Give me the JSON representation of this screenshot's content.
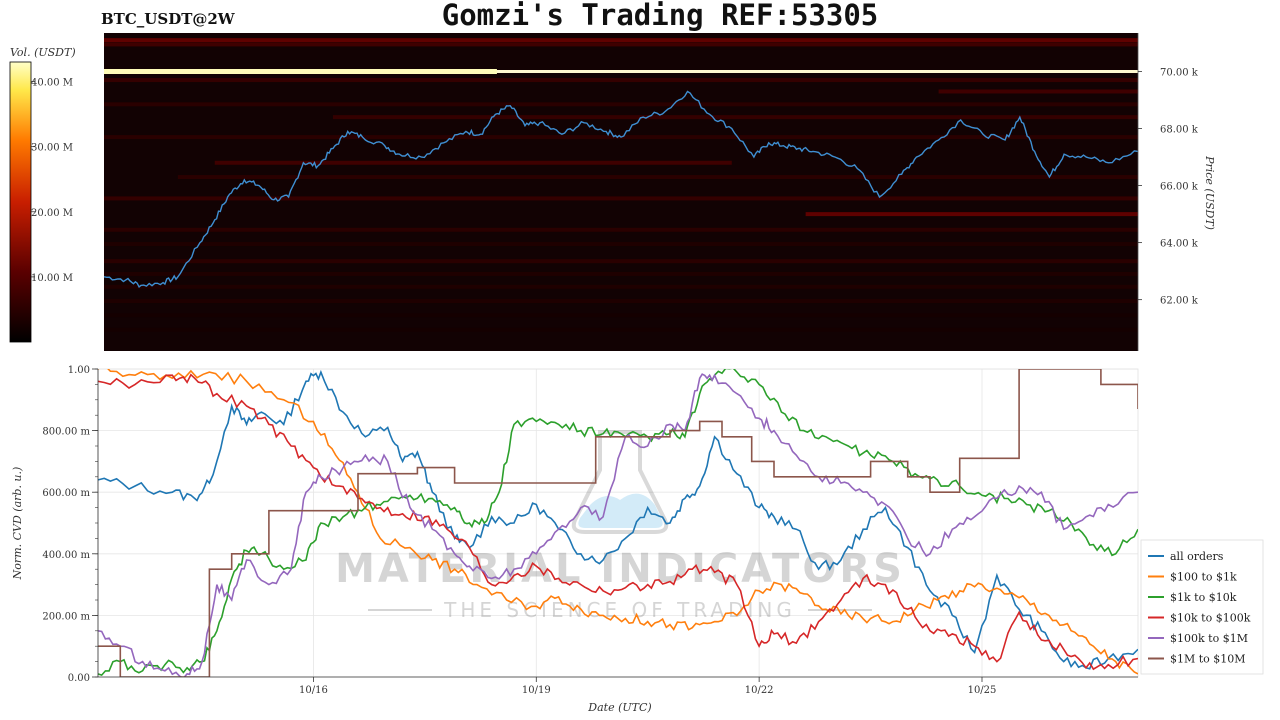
{
  "header": {
    "pair_label": "BTC_USDT@2W",
    "title": "Gomzi's Trading REF:53305"
  },
  "watermark": {
    "line1": "MATERIAL INDICATORS",
    "line2": "THE SCIENCE OF TRADING"
  },
  "colors": {
    "price_line": "#3f8fd2",
    "heatmap_bg": "#120203",
    "hot_band": "#fff8d0",
    "grid": "#e6e6e6"
  },
  "chart_data": [
    {
      "type": "heatmap",
      "title": "",
      "colorbar": {
        "label": "Vol. (USDT)",
        "ticks": [
          "40.00 M",
          "30.00 M",
          "20.00 M",
          "10.00 M"
        ],
        "tick_values": [
          40,
          30,
          20,
          10
        ],
        "range": [
          0,
          43
        ],
        "colormap": [
          "#000000",
          "#5a0000",
          "#c81e00",
          "#ff7a00",
          "#ffe84a",
          "#ffffc8"
        ]
      },
      "ylabel": "Price (USDT)",
      "y_ticks": [
        "70.00 k",
        "68.00 k",
        "66.00 k",
        "64.00 k",
        "62.00 k"
      ],
      "y_tick_values": [
        70000,
        68000,
        66000,
        64000,
        62000
      ],
      "ylim": [
        60200,
        71350
      ],
      "x_range_days": [
        0,
        14
      ],
      "liquidity_bands": [
        {
          "price": 70000,
          "volume": 42,
          "from_day": 0,
          "to_day": 14
        },
        {
          "price": 71100,
          "volume": 9,
          "from_day": 0,
          "to_day": 14
        },
        {
          "price": 70950,
          "volume": 6,
          "from_day": 0,
          "to_day": 14
        },
        {
          "price": 69700,
          "volume": 5,
          "from_day": 0,
          "to_day": 14
        },
        {
          "price": 69300,
          "volume": 6,
          "from_day": 11.3,
          "to_day": 14
        },
        {
          "price": 68850,
          "volume": 4,
          "from_day": 0,
          "to_day": 14
        },
        {
          "price": 68400,
          "volume": 5,
          "from_day": 3.1,
          "to_day": 14
        },
        {
          "price": 67700,
          "volume": 4,
          "from_day": 0,
          "to_day": 14
        },
        {
          "price": 66800,
          "volume": 6,
          "from_day": 1.5,
          "to_day": 8.5
        },
        {
          "price": 66300,
          "volume": 4,
          "from_day": 1.0,
          "to_day": 14
        },
        {
          "price": 65550,
          "volume": 5,
          "from_day": 0,
          "to_day": 14
        },
        {
          "price": 65000,
          "volume": 9,
          "from_day": 9.5,
          "to_day": 14
        },
        {
          "price": 64450,
          "volume": 4,
          "from_day": 0,
          "to_day": 14
        },
        {
          "price": 63950,
          "volume": 3,
          "from_day": 0,
          "to_day": 14
        },
        {
          "price": 63350,
          "volume": 4,
          "from_day": 0,
          "to_day": 14
        },
        {
          "price": 62900,
          "volume": 3,
          "from_day": 0,
          "to_day": 14
        },
        {
          "price": 62450,
          "volume": 3,
          "from_day": 0,
          "to_day": 14
        },
        {
          "price": 61950,
          "volume": 3,
          "from_day": 0,
          "to_day": 14
        },
        {
          "price": 61450,
          "volume": 2,
          "from_day": 0,
          "to_day": 14
        },
        {
          "price": 60950,
          "volume": 2,
          "from_day": 0,
          "to_day": 14
        }
      ],
      "price_series": {
        "name": "",
        "x_days": [
          0,
          0.3,
          0.5,
          0.8,
          1.0,
          1.3,
          1.5,
          1.7,
          1.9,
          2.1,
          2.3,
          2.5,
          2.7,
          2.9,
          3.1,
          3.3,
          3.5,
          3.8,
          4.0,
          4.3,
          4.6,
          4.9,
          5.1,
          5.3,
          5.5,
          5.7,
          5.9,
          6.2,
          6.5,
          6.8,
          7.0,
          7.3,
          7.6,
          7.9,
          8.2,
          8.5,
          8.8,
          9.0,
          9.2,
          9.4,
          9.6,
          9.9,
          10.2,
          10.5,
          10.8,
          11.0,
          11.3,
          11.6,
          11.9,
          12.2,
          12.4,
          12.6,
          12.8,
          13.0,
          13.3,
          13.6,
          14.0
        ],
        "values": [
          62800,
          62700,
          62500,
          62600,
          62800,
          64000,
          64800,
          65700,
          66200,
          66000,
          65500,
          65600,
          66800,
          66700,
          67300,
          67900,
          67700,
          67400,
          67100,
          67000,
          67500,
          67900,
          67800,
          68500,
          68800,
          68100,
          68200,
          67800,
          68200,
          67900,
          67700,
          68400,
          68600,
          69300,
          68500,
          68000,
          67000,
          67500,
          67400,
          67300,
          67200,
          67000,
          66600,
          65600,
          66400,
          67000,
          67600,
          68300,
          67800,
          67600,
          68400,
          67200,
          66300,
          67100,
          67000,
          66800,
          67200
        ]
      }
    },
    {
      "type": "line",
      "title": "",
      "xlabel": "Date (UTC)",
      "ylabel": "Norm. CVD (arb. u.)",
      "ylim": [
        0,
        1
      ],
      "y_ticks": [
        "1.00",
        "800.00 m",
        "600.00 m",
        "400.00 m",
        "200.00 m",
        "0.00"
      ],
      "y_tick_values": [
        1,
        0.8,
        0.6,
        0.4,
        0.2,
        0
      ],
      "x_ticks": [
        "10/16",
        "10/19",
        "10/22",
        "10/25"
      ],
      "x_tick_values": [
        2.9,
        5.9,
        8.9,
        11.9
      ],
      "x_range_days": [
        0,
        14
      ],
      "grid": true,
      "legend_position": "lower-right",
      "series": [
        {
          "name": "all orders",
          "color": "#1f77b4",
          "x": [
            0,
            0.5,
            1.0,
            1.3,
            1.5,
            1.8,
            2.0,
            2.2,
            2.5,
            2.8,
            3.0,
            3.3,
            3.6,
            3.9,
            4.1,
            4.3,
            4.5,
            4.8,
            5.0,
            5.3,
            5.6,
            5.9,
            6.2,
            6.5,
            6.8,
            7.1,
            7.4,
            7.7,
            7.9,
            8.1,
            8.3,
            8.6,
            8.9,
            9.1,
            9.4,
            9.7,
            10.0,
            10.3,
            10.6,
            10.9,
            11.2,
            11.5,
            11.8,
            12.1,
            12.4,
            12.7,
            13.0,
            13.3,
            13.6,
            14.0
          ],
          "y": [
            0.64,
            0.62,
            0.6,
            0.58,
            0.63,
            0.88,
            0.82,
            0.86,
            0.82,
            0.96,
            0.99,
            0.86,
            0.78,
            0.81,
            0.7,
            0.73,
            0.6,
            0.45,
            0.42,
            0.52,
            0.5,
            0.56,
            0.48,
            0.4,
            0.38,
            0.45,
            0.55,
            0.5,
            0.58,
            0.62,
            0.78,
            0.66,
            0.55,
            0.52,
            0.48,
            0.35,
            0.38,
            0.48,
            0.55,
            0.42,
            0.28,
            0.2,
            0.08,
            0.33,
            0.22,
            0.15,
            0.05,
            0.03,
            0.06,
            0.09
          ]
        },
        {
          "name": "$100 to $1k",
          "color": "#ff7f0e",
          "x": [
            0,
            0.5,
            1.0,
            1.5,
            2.0,
            2.5,
            2.9,
            3.2,
            3.5,
            3.8,
            4.2,
            4.5,
            4.8,
            5.1,
            5.5,
            5.9,
            6.2,
            6.5,
            6.8,
            7.1,
            7.4,
            7.7,
            8.0,
            8.3,
            8.6,
            8.9,
            9.2,
            9.5,
            9.8,
            10.1,
            10.4,
            10.7,
            11.0,
            11.3,
            11.6,
            11.9,
            12.2,
            12.5,
            12.8,
            13.1,
            13.4,
            13.7,
            14.0
          ],
          "y": [
            1.0,
            0.98,
            0.97,
            0.99,
            0.96,
            0.9,
            0.83,
            0.72,
            0.6,
            0.45,
            0.42,
            0.38,
            0.35,
            0.3,
            0.25,
            0.23,
            0.26,
            0.22,
            0.2,
            0.19,
            0.18,
            0.17,
            0.16,
            0.18,
            0.2,
            0.28,
            0.3,
            0.27,
            0.22,
            0.2,
            0.19,
            0.18,
            0.22,
            0.25,
            0.28,
            0.3,
            0.27,
            0.25,
            0.2,
            0.15,
            0.1,
            0.05,
            0.01
          ]
        },
        {
          "name": "$1k to $10k",
          "color": "#2ca02c",
          "x": [
            0,
            0.3,
            0.6,
            0.9,
            1.2,
            1.4,
            1.6,
            1.8,
            2.0,
            2.2,
            2.5,
            2.8,
            3.0,
            3.3,
            3.6,
            3.9,
            4.2,
            4.5,
            4.8,
            5.0,
            5.2,
            5.4,
            5.6,
            5.9,
            6.2,
            6.5,
            6.8,
            7.1,
            7.4,
            7.7,
            7.9,
            8.1,
            8.3,
            8.6,
            8.9,
            9.2,
            9.5,
            9.8,
            10.1,
            10.4,
            10.7,
            11.0,
            11.3,
            11.6,
            11.9,
            12.2,
            12.5,
            12.8,
            13.1,
            13.4,
            13.7,
            14.0
          ],
          "y": [
            0.01,
            0.05,
            0.02,
            0.04,
            0.03,
            0.05,
            0.15,
            0.32,
            0.41,
            0.4,
            0.35,
            0.38,
            0.5,
            0.52,
            0.55,
            0.57,
            0.59,
            0.58,
            0.55,
            0.5,
            0.5,
            0.6,
            0.82,
            0.83,
            0.82,
            0.8,
            0.79,
            0.78,
            0.78,
            0.79,
            0.78,
            0.92,
            0.98,
            0.99,
            0.95,
            0.86,
            0.8,
            0.78,
            0.75,
            0.72,
            0.7,
            0.66,
            0.64,
            0.62,
            0.59,
            0.58,
            0.56,
            0.54,
            0.5,
            0.43,
            0.4,
            0.48
          ]
        },
        {
          "name": "$10k to $100k",
          "color": "#d62728",
          "x": [
            0,
            0.5,
            1.0,
            1.3,
            1.6,
            2.0,
            2.3,
            2.6,
            2.9,
            3.2,
            3.5,
            3.8,
            4.1,
            4.4,
            4.7,
            5.0,
            5.3,
            5.6,
            5.9,
            6.2,
            6.5,
            6.8,
            7.1,
            7.4,
            7.7,
            8.0,
            8.3,
            8.6,
            8.9,
            9.1,
            9.4,
            9.7,
            10.0,
            10.3,
            10.6,
            10.9,
            11.2,
            11.5,
            11.8,
            12.1,
            12.4,
            12.7,
            13.0,
            13.3,
            13.6,
            14.0
          ],
          "y": [
            0.96,
            0.95,
            0.98,
            0.97,
            0.92,
            0.88,
            0.82,
            0.75,
            0.68,
            0.62,
            0.58,
            0.55,
            0.53,
            0.52,
            0.48,
            0.42,
            0.3,
            0.33,
            0.36,
            0.32,
            0.3,
            0.28,
            0.29,
            0.3,
            0.31,
            0.35,
            0.34,
            0.3,
            0.1,
            0.14,
            0.11,
            0.18,
            0.25,
            0.32,
            0.3,
            0.22,
            0.15,
            0.14,
            0.1,
            0.05,
            0.21,
            0.12,
            0.09,
            0.03,
            0.04,
            0.06
          ]
        },
        {
          "name": "$100k to $1M",
          "color": "#9467bd",
          "x": [
            0,
            0.3,
            0.6,
            0.9,
            1.2,
            1.4,
            1.6,
            1.8,
            2.0,
            2.3,
            2.6,
            2.8,
            3.0,
            3.3,
            3.6,
            3.9,
            4.2,
            4.5,
            4.8,
            5.0,
            5.3,
            5.6,
            5.9,
            6.2,
            6.5,
            6.8,
            7.1,
            7.4,
            7.7,
            7.9,
            8.1,
            8.3,
            8.6,
            8.9,
            9.1,
            9.4,
            9.7,
            10.0,
            10.3,
            10.6,
            10.9,
            11.2,
            11.5,
            11.8,
            12.1,
            12.4,
            12.7,
            13.0,
            13.3,
            13.6,
            14.0
          ],
          "y": [
            0.15,
            0.1,
            0.05,
            0.02,
            0.01,
            0.05,
            0.3,
            0.25,
            0.38,
            0.3,
            0.35,
            0.6,
            0.65,
            0.68,
            0.72,
            0.7,
            0.55,
            0.48,
            0.4,
            0.36,
            0.32,
            0.35,
            0.4,
            0.48,
            0.55,
            0.52,
            0.78,
            0.75,
            0.82,
            0.8,
            0.97,
            0.98,
            0.92,
            0.84,
            0.8,
            0.72,
            0.65,
            0.63,
            0.6,
            0.56,
            0.45,
            0.4,
            0.48,
            0.52,
            0.58,
            0.62,
            0.6,
            0.48,
            0.52,
            0.56,
            0.6
          ]
        },
        {
          "name": "$1M to $10M",
          "color": "#8c564b",
          "steps_x": [
            0,
            0.3,
            1.3,
            1.5,
            1.8,
            2.3,
            2.7,
            3.0,
            3.5,
            4.3,
            4.8,
            5.4,
            6.3,
            6.7,
            7.1,
            7.7,
            8.1,
            8.4,
            8.8,
            9.1,
            9.5,
            10.0,
            10.4,
            10.9,
            11.2,
            11.6,
            12.4,
            13.5,
            14.0
          ],
          "steps_y": [
            0.1,
            0.0,
            0.0,
            0.35,
            0.4,
            0.54,
            0.54,
            0.54,
            0.66,
            0.68,
            0.63,
            0.63,
            0.63,
            0.78,
            0.78,
            0.8,
            0.83,
            0.78,
            0.7,
            0.65,
            0.65,
            0.65,
            0.7,
            0.65,
            0.6,
            0.71,
            1.0,
            0.95,
            0.87
          ]
        }
      ]
    }
  ]
}
